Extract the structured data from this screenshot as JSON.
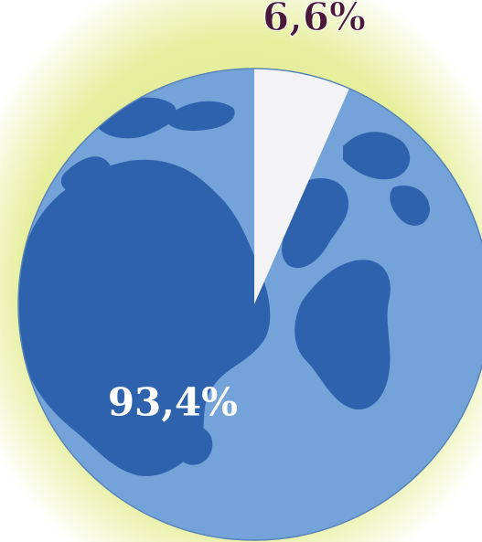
{
  "chart_data": {
    "type": "pie",
    "values": [
      6.6,
      93.4
    ],
    "value_labels": [
      "6,6%",
      "93,4%"
    ],
    "colors": [
      "#f3f2f5",
      "#73a3d8"
    ],
    "label_colors": [
      "#4a1838",
      "#ffffff"
    ],
    "start_angle": 0,
    "direction": "clockwise"
  }
}
